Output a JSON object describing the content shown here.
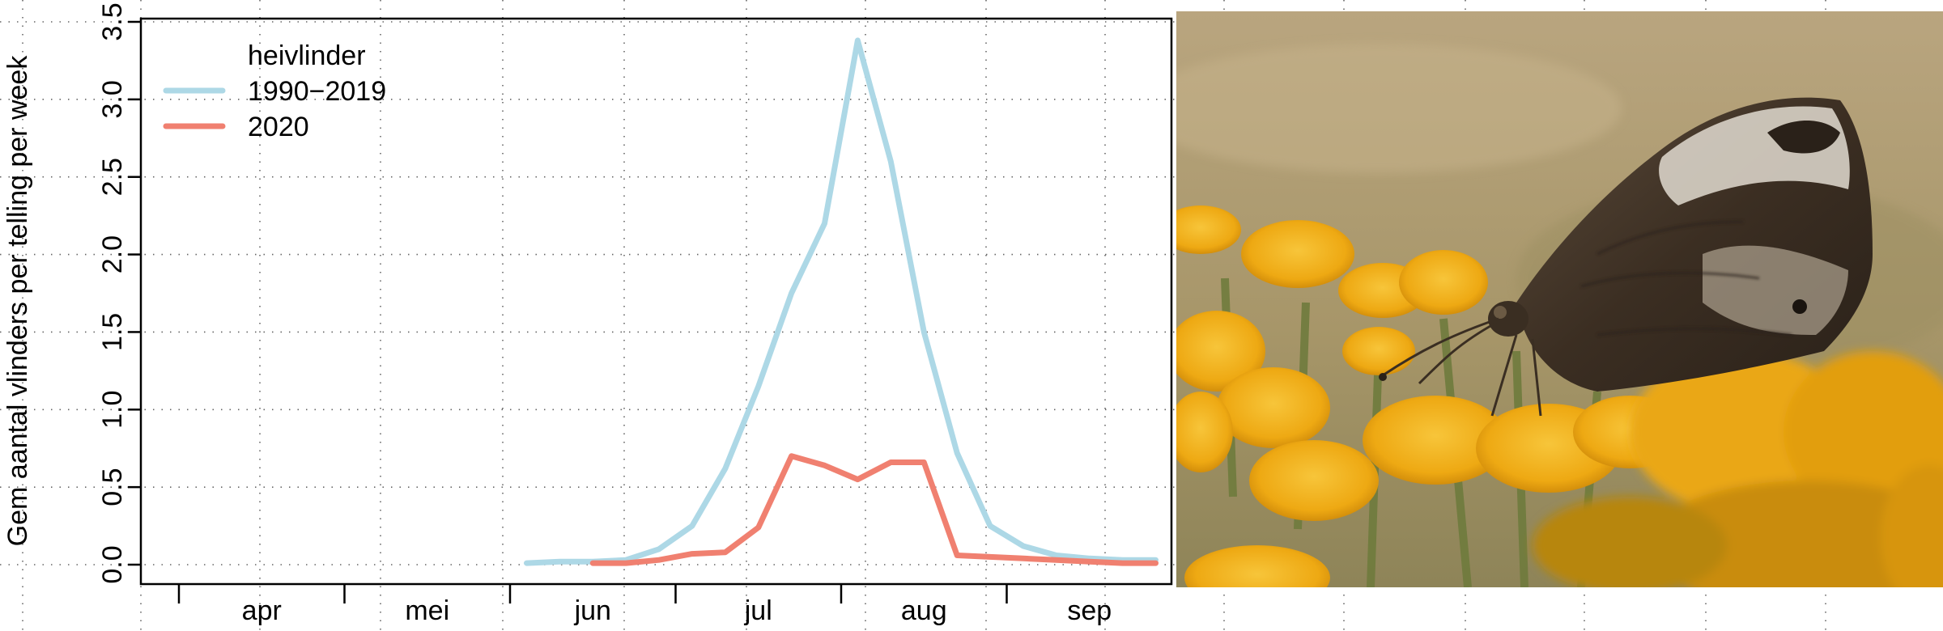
{
  "chart_data": {
    "type": "line",
    "ylabel": "Gem aantal vlinders per telling per week",
    "xlabel": "",
    "ylim": [
      -0.12,
      3.5
    ],
    "yticks": [
      0.0,
      0.5,
      1.0,
      1.5,
      2.0,
      2.5,
      3.0,
      3.5
    ],
    "ytick_labels": [
      "0.0",
      "0.5",
      "1.0",
      "1.5",
      "2.0",
      "2.5",
      "3.0",
      "3.5"
    ],
    "x_unit": "week",
    "xlim": [
      9.5,
      40.5
    ],
    "month_boundaries": [
      10.5,
      15.5,
      20.5,
      25.5,
      30.5,
      35.5
    ],
    "months": [
      {
        "label": "apr",
        "center": 13
      },
      {
        "label": "mei",
        "center": 18
      },
      {
        "label": "jun",
        "center": 23
      },
      {
        "label": "jul",
        "center": 28
      },
      {
        "label": "aug",
        "center": 33
      },
      {
        "label": "sep",
        "center": 38
      }
    ],
    "grid": true,
    "legend": {
      "title": "heivlinder",
      "position": "top-left"
    },
    "series": [
      {
        "name": "1990−2019",
        "color": "#ADD8E6",
        "x": [
          21,
          22,
          23,
          24,
          25,
          26,
          27,
          28,
          29,
          30,
          31,
          32,
          33,
          34,
          35,
          36,
          37,
          38,
          39,
          40
        ],
        "y": [
          0.01,
          0.02,
          0.02,
          0.03,
          0.1,
          0.25,
          0.62,
          1.15,
          1.75,
          2.2,
          3.38,
          2.6,
          1.5,
          0.72,
          0.25,
          0.12,
          0.06,
          0.04,
          0.03,
          0.03
        ]
      },
      {
        "name": "2020",
        "color": "#F08070",
        "x": [
          23,
          24,
          25,
          26,
          27,
          28,
          29,
          30,
          31,
          32,
          33,
          34,
          35,
          36,
          37,
          38,
          39,
          40
        ],
        "y": [
          0.01,
          0.01,
          0.03,
          0.07,
          0.08,
          0.24,
          0.7,
          0.64,
          0.55,
          0.66,
          0.66,
          0.06,
          0.05,
          0.04,
          0.03,
          0.02,
          0.01,
          0.01
        ]
      }
    ]
  },
  "photo": {
    "icon": "grayling-butterfly-on-tansy-photo",
    "colors": {
      "sky_top": "#B8A47E",
      "sky_bottom": "#A8966A",
      "flower": "#F2B318",
      "flower_dark": "#D18C0A",
      "stem": "#6E7A3C",
      "wing_dark": "#3E3024",
      "wing_light": "#D9D4CA"
    }
  }
}
